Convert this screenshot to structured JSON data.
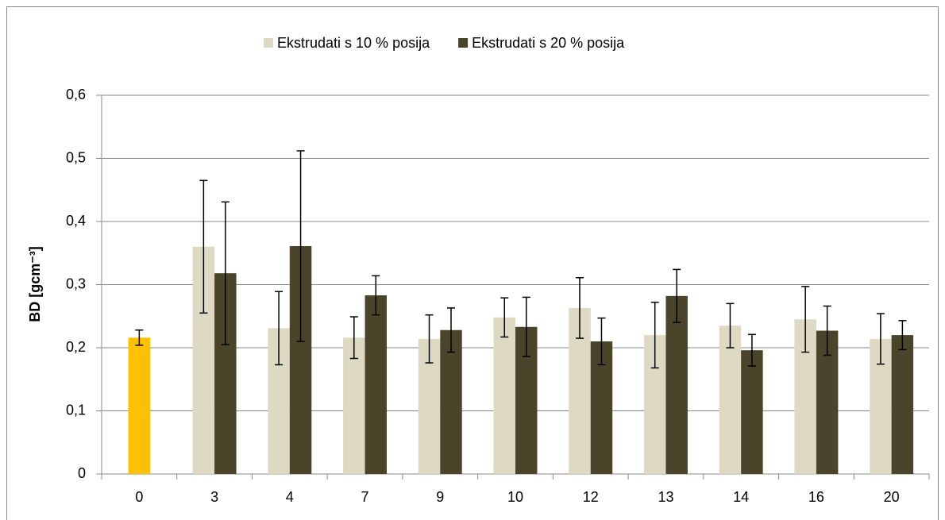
{
  "chart_data": {
    "type": "bar",
    "categories": [
      "0",
      "3",
      "4",
      "7",
      "9",
      "10",
      "12",
      "13",
      "14",
      "16",
      "20"
    ],
    "series": [
      {
        "color": "#ffc000",
        "values": [
          0.216,
          null,
          null,
          null,
          null,
          null,
          null,
          null,
          null,
          null,
          null
        ],
        "errors": [
          0.012,
          null,
          null,
          null,
          null,
          null,
          null,
          null,
          null,
          null,
          null
        ]
      },
      {
        "name": "Ekstrudati s 10 % posija",
        "color": "#ddd9c3",
        "values": [
          null,
          0.36,
          0.231,
          0.216,
          0.214,
          0.248,
          0.263,
          0.22,
          0.235,
          0.245,
          0.214
        ],
        "errors": [
          null,
          0.105,
          0.058,
          0.033,
          0.038,
          0.031,
          0.048,
          0.052,
          0.035,
          0.052,
          0.04
        ]
      },
      {
        "name": "Ekstrudati s 20 % posija",
        "color": "#4a452a",
        "values": [
          null,
          0.318,
          0.361,
          0.283,
          0.228,
          0.233,
          0.21,
          0.282,
          0.196,
          0.227,
          0.22
        ],
        "errors": [
          null,
          0.113,
          0.151,
          0.031,
          0.035,
          0.047,
          0.037,
          0.042,
          0.025,
          0.039,
          0.023
        ]
      }
    ],
    "y_label": "BD [gcm⁻³]",
    "ylim": [
      0,
      0.6
    ],
    "yticks": [
      0,
      {
        "value": 0.1,
        "label": "0,1"
      },
      {
        "value": 0.2,
        "label": "0,2"
      },
      {
        "value": 0.3,
        "label": "0,3"
      },
      {
        "value": 0.4,
        "label": "0,4"
      },
      {
        "value": 0.5,
        "label": "0,5"
      },
      {
        "value": 0.6,
        "label": "0,6"
      }
    ],
    "grid": true,
    "legend": "top"
  }
}
